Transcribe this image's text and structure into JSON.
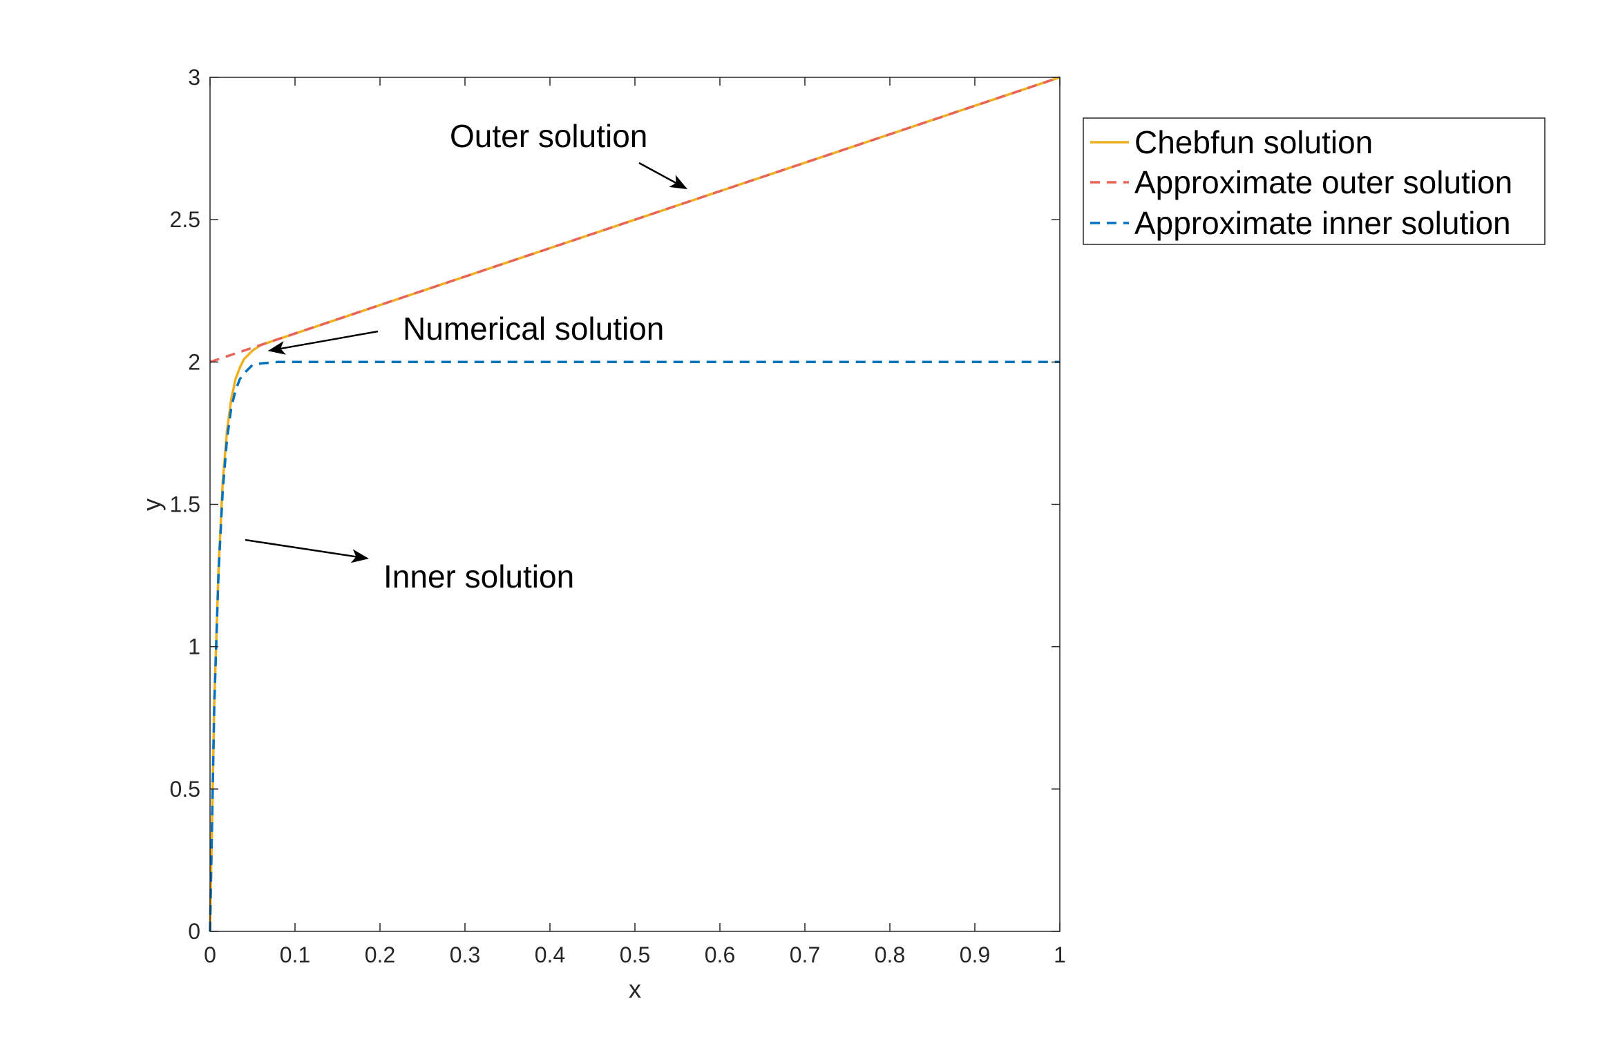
{
  "chart_data": {
    "type": "line",
    "title": "",
    "xlabel": "x",
    "ylabel": "y",
    "xlim": [
      0,
      1
    ],
    "ylim": [
      0,
      3
    ],
    "xticks": [
      0,
      0.1,
      0.2,
      0.3,
      0.4,
      0.5,
      0.6,
      0.7,
      0.8,
      0.9,
      1
    ],
    "xtick_labels": [
      "0",
      "0.1",
      "0.2",
      "0.3",
      "0.4",
      "0.5",
      "0.6",
      "0.7",
      "0.8",
      "0.9",
      "1"
    ],
    "yticks": [
      0,
      0.5,
      1,
      1.5,
      2,
      2.5,
      3
    ],
    "ytick_labels": [
      "0",
      "0.5",
      "1",
      "1.5",
      "2",
      "2.5",
      "3"
    ],
    "grid": false,
    "box": true,
    "legend_position": "outside-top-right",
    "series": [
      {
        "name": "Chebfun solution",
        "style": "solid",
        "color": "#EDB120",
        "x": [
          0,
          0.005,
          0.01,
          0.015,
          0.02,
          0.025,
          0.03,
          0.035,
          0.04,
          0.05,
          0.06,
          0.07,
          0.08,
          0.1,
          0.2,
          0.3,
          0.4,
          0.5,
          0.6,
          0.7,
          0.8,
          0.9,
          1
        ],
        "y": [
          0,
          0.8,
          1.27,
          1.58,
          1.76,
          1.87,
          1.94,
          1.98,
          2.01,
          2.04,
          2.06,
          2.07,
          2.08,
          2.1,
          2.2,
          2.3,
          2.4,
          2.5,
          2.6,
          2.7,
          2.8,
          2.9,
          3
        ]
      },
      {
        "name": "Approximate outer solution",
        "style": "dashed",
        "color": "#E8645A",
        "x": [
          0,
          1
        ],
        "y": [
          2,
          3
        ]
      },
      {
        "name": "Approximate inner solution",
        "style": "dashed",
        "color": "#0072BD",
        "x": [
          0,
          0.005,
          0.01,
          0.015,
          0.02,
          0.025,
          0.03,
          0.035,
          0.04,
          0.05,
          0.06,
          0.08,
          0.1,
          0.2,
          0.4,
          0.6,
          0.8,
          1
        ],
        "y": [
          0,
          0.79,
          1.26,
          1.55,
          1.73,
          1.84,
          1.9,
          1.94,
          1.96,
          1.99,
          1.995,
          2,
          2,
          2,
          2,
          2,
          2,
          2
        ]
      }
    ],
    "annotations": [
      {
        "text": "Outer solution",
        "arrow_to": [
          0.56,
          2.61
        ]
      },
      {
        "text": "Numerical solution",
        "arrow_to": [
          0.07,
          2.04
        ]
      },
      {
        "text": "Inner solution",
        "arrow_to": [
          0.185,
          1.31
        ]
      }
    ]
  }
}
